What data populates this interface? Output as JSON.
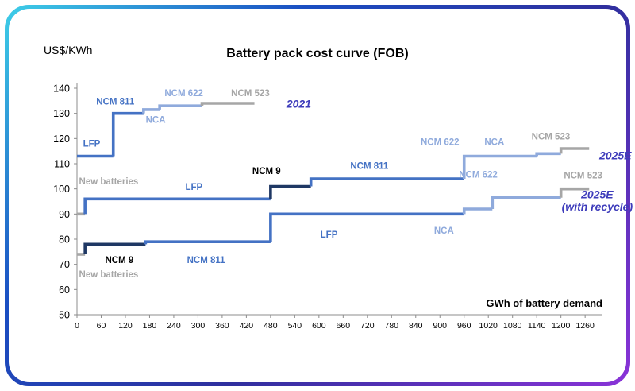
{
  "window": {
    "border_gradient": [
      "#3ecfe8",
      "#1a4ec2",
      "#2f2f9e",
      "#8a33d8"
    ]
  },
  "chart_data": {
    "type": "line",
    "subtype": "stepped-cost-curve",
    "title": "Battery pack cost curve (FOB)",
    "ylabel": "US$/KWh",
    "xlabel": "GWh of battery demand",
    "ylim": [
      50,
      140
    ],
    "yticks": [
      50,
      60,
      70,
      80,
      90,
      100,
      110,
      120,
      130,
      140
    ],
    "xlim": [
      0,
      1303
    ],
    "xticks": [
      0,
      60,
      120,
      180,
      240,
      300,
      360,
      420,
      480,
      540,
      600,
      660,
      720,
      780,
      840,
      900,
      960,
      1020,
      1080,
      1140,
      1200,
      1260
    ],
    "grid": false,
    "legend_position": "inline-annotations",
    "palette": {
      "navy": "#1F3864",
      "blue": "#4472C4",
      "light_blue": "#8FAADC",
      "gray": "#A6A6A6",
      "year": "#3E3CBB",
      "black": "#000000",
      "axis": "#8c8c8c"
    },
    "series": [
      {
        "name": "2021",
        "segments": [
          {
            "label": "LFP",
            "color": "blue",
            "x0": 0,
            "x1": 90,
            "y": 113
          },
          {
            "label": "NCM 811",
            "color": "blue",
            "x0": 90,
            "x1": 165,
            "y": 130
          },
          {
            "label": "NCA",
            "color": "light_blue",
            "x0": 165,
            "x1": 205,
            "y": 131.5
          },
          {
            "label": "NCM 622",
            "color": "light_blue",
            "x0": 205,
            "x1": 310,
            "y": 133
          },
          {
            "label": "NCM 523",
            "color": "gray",
            "x0": 310,
            "x1": 440,
            "y": 134
          }
        ]
      },
      {
        "name": "2025E",
        "segments": [
          {
            "label": "New batteries",
            "color": "gray",
            "x0": 0,
            "x1": 20,
            "y": 90
          },
          {
            "label": "LFP",
            "color": "blue",
            "x0": 20,
            "x1": 480,
            "y": 96
          },
          {
            "label": "NCM 9",
            "color": "navy",
            "x0": 480,
            "x1": 580,
            "y": 101
          },
          {
            "label": "NCM 811",
            "color": "blue",
            "x0": 580,
            "x1": 960,
            "y": 104
          },
          {
            "label": "NCM 622",
            "color": "light_blue",
            "x0": 960,
            "x1": 1140,
            "y": 113
          },
          {
            "label": "NCA",
            "color": "light_blue",
            "x0": 1140,
            "x1": 1200,
            "y": 114
          },
          {
            "label": "NCM 523",
            "color": "gray",
            "x0": 1200,
            "x1": 1270,
            "y": 116
          }
        ]
      },
      {
        "name": "2025E (with recycle)",
        "segments": [
          {
            "label": "New batteries",
            "color": "gray",
            "x0": 0,
            "x1": 20,
            "y": 74
          },
          {
            "label": "NCM 9",
            "color": "navy",
            "x0": 20,
            "x1": 170,
            "y": 78
          },
          {
            "label": "NCM 811",
            "color": "blue",
            "x0": 170,
            "x1": 480,
            "y": 79
          },
          {
            "label": "LFP",
            "color": "blue",
            "x0": 480,
            "x1": 960,
            "y": 90
          },
          {
            "label": "NCA",
            "color": "light_blue",
            "x0": 960,
            "x1": 1030,
            "y": 92
          },
          {
            "label": "NCM 622",
            "color": "light_blue",
            "x0": 1030,
            "x1": 1200,
            "y": 96.5
          },
          {
            "label": "NCM 523",
            "color": "gray",
            "x0": 1200,
            "x1": 1270,
            "y": 100
          }
        ]
      }
    ],
    "annotations": [
      {
        "text": "LFP",
        "x": 15,
        "y": 116.8,
        "color": "blue",
        "anchor": "start"
      },
      {
        "text": "NCM 811",
        "x": 95,
        "y": 133.6,
        "color": "blue",
        "anchor": "middle"
      },
      {
        "text": "NCA",
        "x": 195,
        "y": 126.3,
        "color": "light_blue",
        "anchor": "middle"
      },
      {
        "text": "NCM 622",
        "x": 265,
        "y": 136.9,
        "color": "light_blue",
        "anchor": "middle"
      },
      {
        "text": "NCM 523",
        "x": 430,
        "y": 136.9,
        "color": "gray",
        "anchor": "middle"
      },
      {
        "text": "2021",
        "x": 550,
        "y": 132.2,
        "color": "year",
        "anchor": "middle",
        "italic": true,
        "size": 14
      },
      {
        "text": "New batteries",
        "x": 5,
        "y": 101.8,
        "color": "gray",
        "anchor": "start"
      },
      {
        "text": "LFP",
        "x": 290,
        "y": 99.6,
        "color": "blue",
        "anchor": "middle"
      },
      {
        "text": "NCM 9",
        "x": 470,
        "y": 105.9,
        "color": "black",
        "anchor": "middle"
      },
      {
        "text": "NCM 811",
        "x": 725,
        "y": 107.9,
        "color": "blue",
        "anchor": "middle"
      },
      {
        "text": "NCM 622",
        "x": 900,
        "y": 117.4,
        "color": "light_blue",
        "anchor": "middle"
      },
      {
        "text": "NCA",
        "x": 1035,
        "y": 117.4,
        "color": "light_blue",
        "anchor": "middle"
      },
      {
        "text": "NCM 523",
        "x": 1175,
        "y": 119.6,
        "color": "gray",
        "anchor": "middle"
      },
      {
        "text": "2025E",
        "x": 1335,
        "y": 111.8,
        "color": "year",
        "anchor": "middle",
        "italic": true,
        "size": 14
      },
      {
        "text": "New batteries",
        "x": 5,
        "y": 64.8,
        "color": "gray",
        "anchor": "start"
      },
      {
        "text": "NCM 9",
        "x": 105,
        "y": 70.6,
        "color": "black",
        "anchor": "middle"
      },
      {
        "text": "NCM 811",
        "x": 320,
        "y": 70.6,
        "color": "blue",
        "anchor": "middle"
      },
      {
        "text": "LFP",
        "x": 625,
        "y": 80.6,
        "color": "blue",
        "anchor": "middle"
      },
      {
        "text": "NCA",
        "x": 910,
        "y": 82.2,
        "color": "light_blue",
        "anchor": "middle"
      },
      {
        "text": "NCM 622",
        "x": 995,
        "y": 104.4,
        "color": "light_blue",
        "anchor": "middle"
      },
      {
        "text": "NCM 523",
        "x": 1255,
        "y": 104.1,
        "color": "gray",
        "anchor": "middle"
      },
      {
        "text": "2025E",
        "x": 1290,
        "y": 96.3,
        "color": "year",
        "anchor": "middle",
        "italic": true,
        "size": 14
      },
      {
        "text": "(with recycle)",
        "x": 1290,
        "y": 91.3,
        "color": "year",
        "anchor": "middle",
        "italic": true,
        "size": 14
      }
    ]
  }
}
